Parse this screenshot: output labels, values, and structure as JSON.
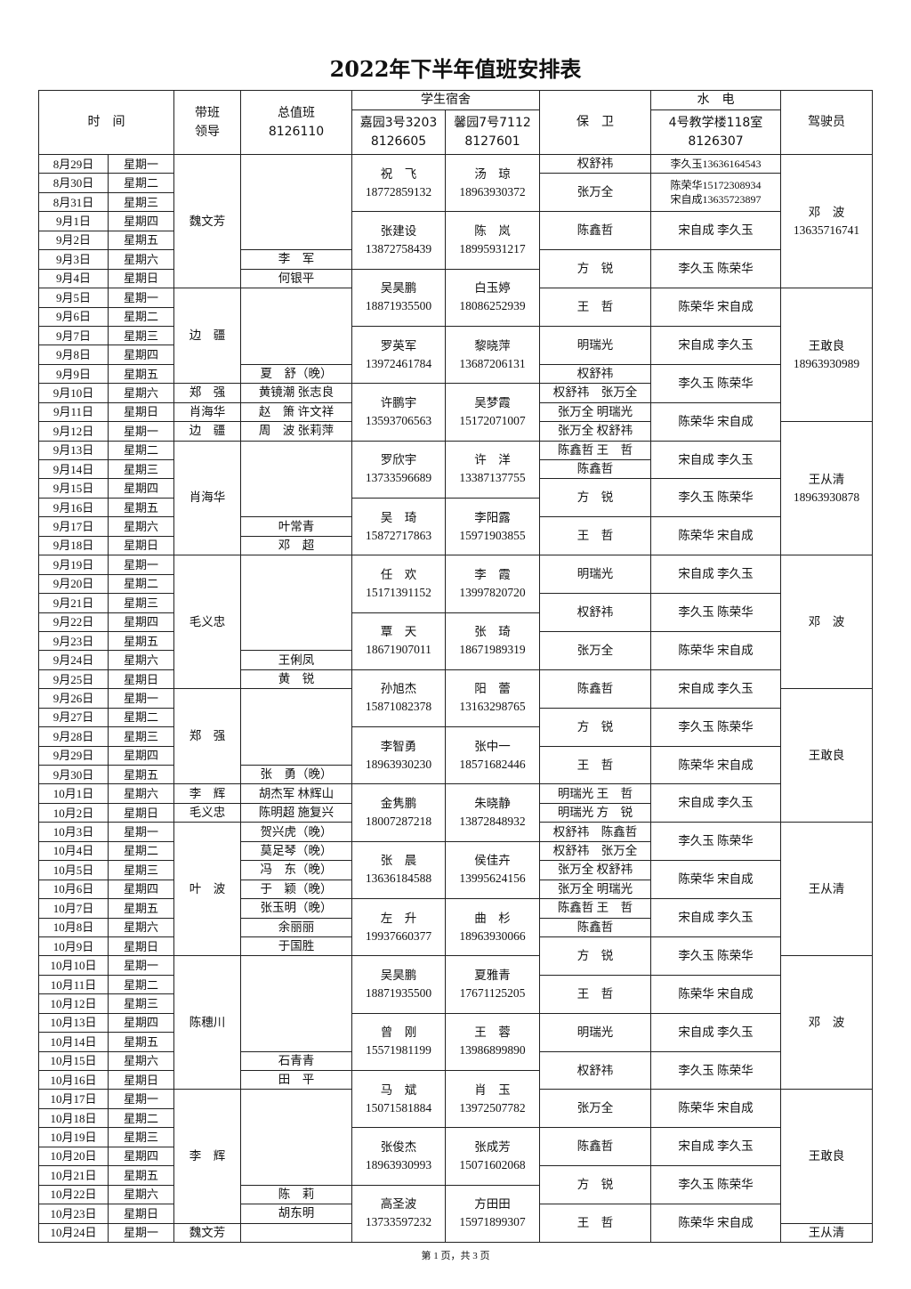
{
  "title": "2022年下半年值班安排表",
  "footer": "第 1 页，共 3 页",
  "header": {
    "time": "时　间",
    "leader": "带班\n领导",
    "duty": "总值班\n8126110",
    "dorm": "学生宿舍",
    "dorm_a": "嘉园3号3203\n8126605",
    "dorm_b": "馨园7号7112\n8127601",
    "security": "保　卫",
    "utility": "水　电",
    "utility_loc": "4号教学楼118室\n8126307",
    "driver": "驾驶员"
  },
  "dates": [
    "8月29日",
    "8月30日",
    "8月31日",
    "9月1日",
    "9月2日",
    "9月3日",
    "9月4日",
    "9月5日",
    "9月6日",
    "9月7日",
    "9月8日",
    "9月9日",
    "9月10日",
    "9月11日",
    "9月12日",
    "9月13日",
    "9月14日",
    "9月15日",
    "9月16日",
    "9月17日",
    "9月18日",
    "9月19日",
    "9月20日",
    "9月21日",
    "9月22日",
    "9月23日",
    "9月24日",
    "9月25日",
    "9月26日",
    "9月27日",
    "9月28日",
    "9月29日",
    "9月30日",
    "10月1日",
    "10月2日",
    "10月3日",
    "10月4日",
    "10月5日",
    "10月6日",
    "10月7日",
    "10月8日",
    "10月9日",
    "10月10日",
    "10月11日",
    "10月12日",
    "10月13日",
    "10月14日",
    "10月15日",
    "10月16日",
    "10月17日",
    "10月18日",
    "10月19日",
    "10月20日",
    "10月21日",
    "10月22日",
    "10月23日",
    "10月24日"
  ],
  "weekdays": [
    "星期一",
    "星期二",
    "星期三",
    "星期四",
    "星期五",
    "星期六",
    "星期日",
    "星期一",
    "星期二",
    "星期三",
    "星期四",
    "星期五",
    "星期六",
    "星期日",
    "星期一",
    "星期二",
    "星期三",
    "星期四",
    "星期五",
    "星期六",
    "星期日",
    "星期一",
    "星期二",
    "星期三",
    "星期四",
    "星期五",
    "星期六",
    "星期日",
    "星期一",
    "星期二",
    "星期三",
    "星期四",
    "星期五",
    "星期六",
    "星期日",
    "星期一",
    "星期二",
    "星期三",
    "星期四",
    "星期五",
    "星期六",
    "星期日",
    "星期一",
    "星期二",
    "星期三",
    "星期四",
    "星期五",
    "星期六",
    "星期日",
    "星期一",
    "星期二",
    "星期三",
    "星期四",
    "星期五",
    "星期六",
    "星期日",
    "星期一"
  ],
  "leader": [
    [
      "魏文芳",
      7
    ],
    [
      "边　疆",
      5
    ],
    [
      "郑　强",
      1
    ],
    [
      "肖海华",
      1
    ],
    [
      "边　疆",
      1
    ],
    [
      "肖海华",
      6
    ],
    [
      "毛义忠",
      7
    ],
    [
      "郑　强",
      5
    ],
    [
      "李　辉",
      1
    ],
    [
      "毛义忠",
      1
    ],
    [
      "叶　波",
      7
    ],
    [
      "陈穗川",
      7
    ],
    [
      "李　辉",
      7
    ],
    [
      "魏文芳",
      1
    ]
  ],
  "duty": [
    [
      "",
      5
    ],
    [
      "李　军",
      1
    ],
    [
      "何银平",
      1
    ],
    [
      "",
      4
    ],
    [
      "夏　舒（晚）",
      1
    ],
    [
      "黄镜潮 张志良",
      1
    ],
    [
      "赵　箫 许文祥",
      1
    ],
    [
      "周　波 张莉萍",
      1
    ],
    [
      "",
      4
    ],
    [
      "叶常青",
      1
    ],
    [
      "邓　超",
      1
    ],
    [
      "",
      5
    ],
    [
      "王俐凤",
      1
    ],
    [
      "黄　锐",
      1
    ],
    [
      "",
      4
    ],
    [
      "张　勇（晚）",
      1
    ],
    [
      "胡杰军 林辉山",
      1
    ],
    [
      "陈明超 施复兴",
      1
    ],
    [
      "贺兴虎（晚）",
      1
    ],
    [
      "莫足琴（晚）",
      1
    ],
    [
      "冯　东（晚）",
      1
    ],
    [
      "于　颖（晚）",
      1
    ],
    [
      "张玉明（晚）",
      1
    ],
    [
      "余丽丽",
      1
    ],
    [
      "于国胜",
      1
    ],
    [
      "",
      5
    ],
    [
      "石青青",
      1
    ],
    [
      "田　平",
      1
    ],
    [
      "",
      5
    ],
    [
      "陈　莉",
      1
    ],
    [
      "胡东明",
      1
    ],
    [
      "",
      1
    ]
  ],
  "dorm_a": [
    [
      "祝　飞\n18772859132",
      3
    ],
    [
      "张建设\n13872758439",
      3
    ],
    [
      "吴昊鹏\n18871935500",
      3
    ],
    [
      "罗英军\n13972461784",
      3
    ],
    [
      "许鹏宇\n13593706563",
      3
    ],
    [
      "罗欣宇\n13733596689",
      3
    ],
    [
      "吴　琦\n15872717863",
      3
    ],
    [
      "任　欢\n15171391152",
      3
    ],
    [
      "覃　天\n18671907011",
      3
    ],
    [
      "孙旭杰\n15871082378",
      3
    ],
    [
      "李智勇\n18963930230",
      3
    ],
    [
      "金隽鹏\n18007287218",
      3
    ],
    [
      "张　晨\n13636184588",
      3
    ],
    [
      "左　升\n19937660377",
      3
    ],
    [
      "吴昊鹏\n18871935500",
      3
    ],
    [
      "曾　刚\n15571981199",
      3
    ],
    [
      "马　斌\n15071581884",
      3
    ],
    [
      "张俊杰\n18963930993",
      3
    ],
    [
      "高圣波\n13733597232",
      3
    ]
  ],
  "dorm_b": [
    [
      "汤　琼\n18963930372",
      3
    ],
    [
      "陈　岚\n18995931217",
      3
    ],
    [
      "白玉婷\n18086252939",
      3
    ],
    [
      "黎晓萍\n13687206131",
      3
    ],
    [
      "吴梦霞\n15172071007",
      3
    ],
    [
      "许　洋\n13387137755",
      3
    ],
    [
      "李阳露\n15971903855",
      3
    ],
    [
      "李　霞\n13997820720",
      3
    ],
    [
      "张　琦\n18671989319",
      3
    ],
    [
      "阳　蕾\n13163298765",
      3
    ],
    [
      "张中一\n18571682446",
      3
    ],
    [
      "朱晓静\n13872848932",
      3
    ],
    [
      "侯佳卉\n13995624156",
      3
    ],
    [
      "曲　杉\n18963930066",
      3
    ],
    [
      "夏雅青\n17671125205",
      3
    ],
    [
      "王　蓉\n13986899890",
      3
    ],
    [
      "肖　玉\n13972507782",
      3
    ],
    [
      "张成芳\n15071602068",
      3
    ],
    [
      "方田田\n15971899307",
      3
    ]
  ],
  "security": [
    [
      "权舒祎",
      1
    ],
    [
      "张万全",
      2
    ],
    [
      "陈鑫哲",
      2
    ],
    [
      "方　锐",
      2
    ],
    [
      "王　哲",
      2
    ],
    [
      "明瑞光",
      2
    ],
    [
      "权舒祎",
      1
    ],
    [
      "权舒祎　张万全",
      1
    ],
    [
      "张万全 明瑞光",
      1
    ],
    [
      "张万全 权舒祎",
      1
    ],
    [
      "陈鑫哲 王　哲",
      1
    ],
    [
      "陈鑫哲",
      1
    ],
    [
      "方　锐",
      2
    ],
    [
      "王　哲",
      2
    ],
    [
      "明瑞光",
      2
    ],
    [
      "权舒祎",
      2
    ],
    [
      "张万全",
      2
    ],
    [
      "陈鑫哲",
      2
    ],
    [
      "方　锐",
      2
    ],
    [
      "王　哲",
      2
    ],
    [
      "明瑞光 王　哲",
      1
    ],
    [
      "明瑞光 方　锐",
      1
    ],
    [
      "权舒祎　陈鑫哲",
      1
    ],
    [
      "权舒祎　张万全",
      1
    ],
    [
      "张万全 权舒祎",
      1
    ],
    [
      "张万全 明瑞光",
      1
    ],
    [
      "陈鑫哲 王　哲",
      1
    ],
    [
      "陈鑫哲",
      1
    ],
    [
      "方　锐",
      2
    ],
    [
      "王　哲",
      2
    ],
    [
      "明瑞光",
      2
    ],
    [
      "权舒祎",
      2
    ],
    [
      "张万全",
      2
    ],
    [
      "陈鑫哲",
      2
    ],
    [
      "方　锐",
      2
    ],
    [
      "王　哲",
      2
    ]
  ],
  "utility": [
    [
      "李久玉13636164543",
      1
    ],
    [
      "陈荣华15172308934\n宋自成13635723897",
      2
    ],
    [
      "宋自成 李久玉",
      2
    ],
    [
      "李久玉 陈荣华",
      2
    ],
    [
      "陈荣华 宋自成",
      2
    ],
    [
      "宋自成 李久玉",
      2
    ],
    [
      "李久玉 陈荣华",
      2
    ],
    [
      "陈荣华 宋自成",
      2
    ],
    [
      "宋自成 李久玉",
      2
    ],
    [
      "李久玉 陈荣华",
      2
    ],
    [
      "陈荣华 宋自成",
      2
    ],
    [
      "宋自成 李久玉",
      2
    ],
    [
      "李久玉 陈荣华",
      2
    ],
    [
      "陈荣华 宋自成",
      2
    ],
    [
      "宋自成 李久玉",
      2
    ],
    [
      "李久玉 陈荣华",
      2
    ],
    [
      "陈荣华 宋自成",
      2
    ],
    [
      "宋自成 李久玉",
      2
    ],
    [
      "李久玉 陈荣华",
      2
    ],
    [
      "陈荣华 宋自成",
      2
    ],
    [
      "宋自成 李久玉",
      2
    ],
    [
      "李久玉 陈荣华",
      2
    ],
    [
      "陈荣华 宋自成",
      2
    ],
    [
      "宋自成 李久玉",
      2
    ],
    [
      "李久玉 陈荣华",
      2
    ],
    [
      "陈荣华 宋自成",
      2
    ],
    [
      "宋自成 李久玉",
      2
    ],
    [
      "李久玉 陈荣华",
      2
    ],
    [
      "陈荣华 宋自成",
      2
    ]
  ],
  "driver": [
    [
      "邓　波\n13635716741",
      7
    ],
    [
      "王敢良\n18963930989",
      7
    ],
    [
      "王从清\n18963930878",
      7
    ],
    [
      "邓　波",
      7
    ],
    [
      "王敢良",
      7
    ],
    [
      "王从清",
      7
    ],
    [
      "邓　波",
      7
    ],
    [
      "王敢良",
      7
    ],
    [
      "王从清",
      1
    ]
  ]
}
